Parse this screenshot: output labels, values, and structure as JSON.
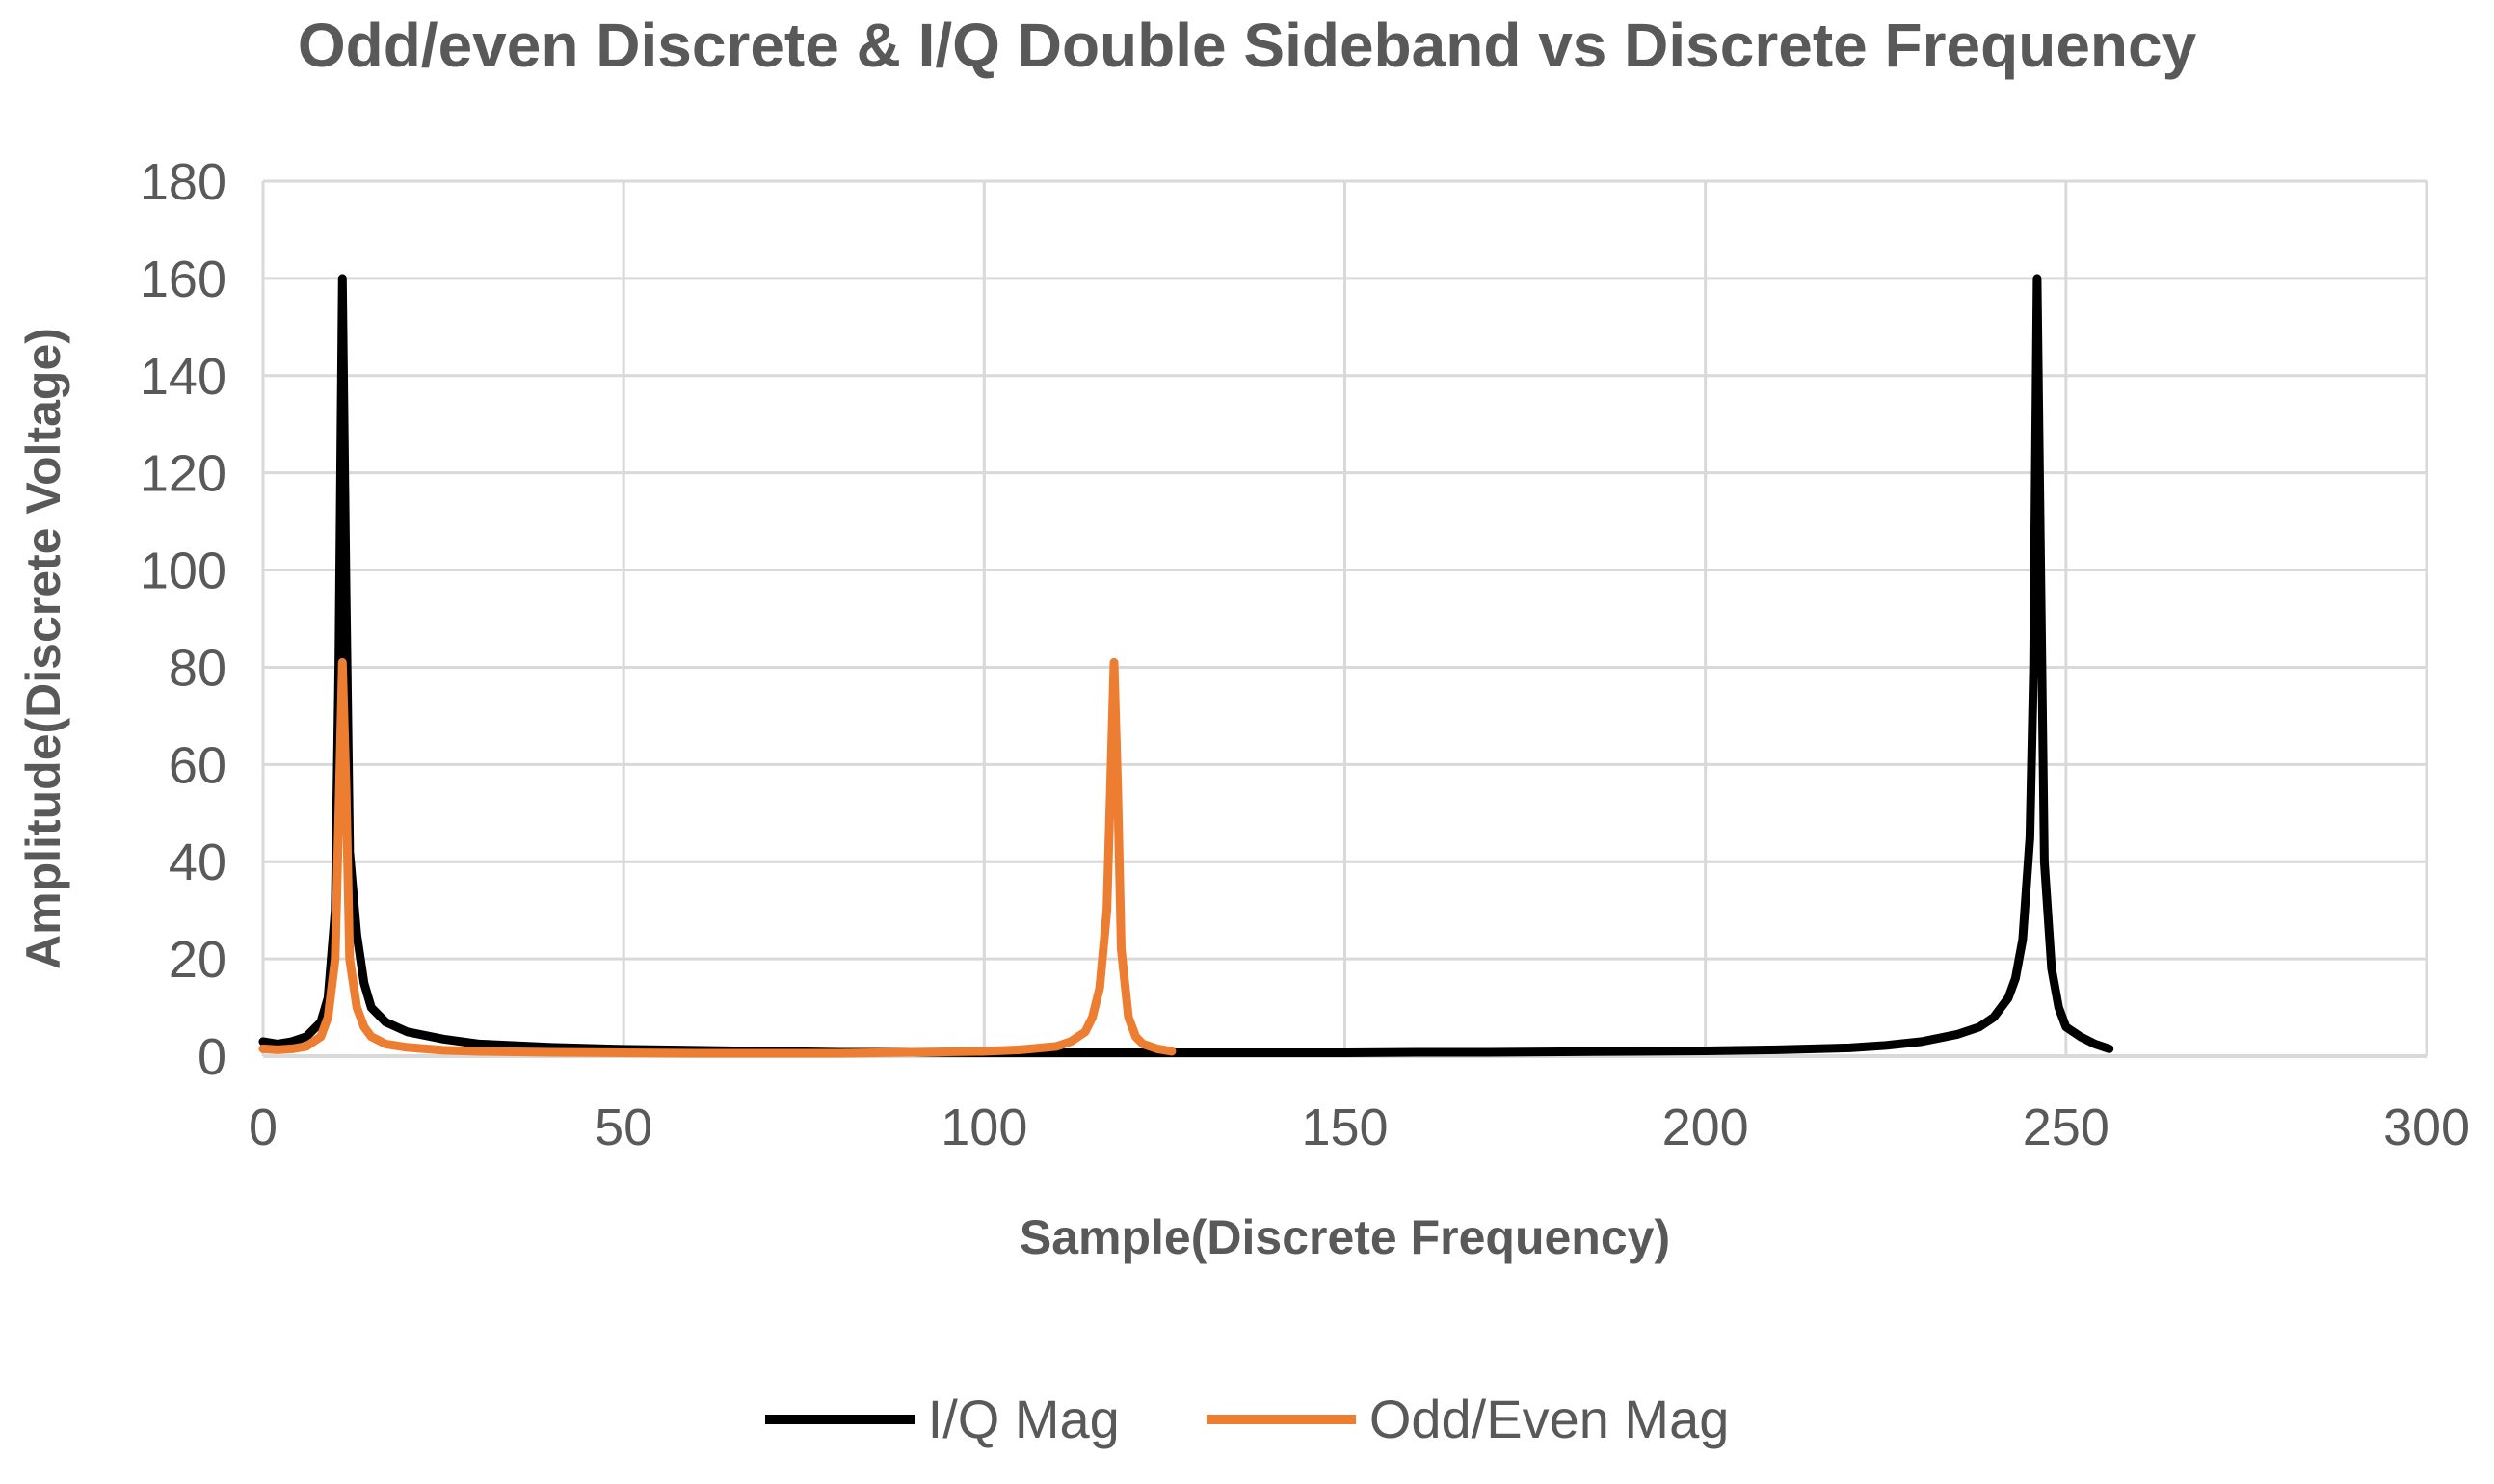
{
  "chart_data": {
    "type": "line",
    "title": "Odd/even Discrete & I/Q Double Sideband vs Discrete Frequency",
    "xlabel": "Sample(Discrete Frequency)",
    "ylabel": "Amplitude(Discrete Voltage)",
    "xlim": [
      0,
      300
    ],
    "ylim": [
      0,
      180
    ],
    "xticks": [
      0,
      50,
      100,
      150,
      200,
      250,
      300
    ],
    "yticks": [
      0,
      20,
      40,
      60,
      80,
      100,
      120,
      140,
      160,
      180
    ],
    "grid": true,
    "legend_position": "bottom",
    "series": [
      {
        "name": "I/Q Mag",
        "color": "#000000",
        "x": [
          0,
          2,
          4,
          6,
          8,
          9,
          10,
          10.5,
          11,
          11.5,
          12,
          13,
          14,
          15,
          17,
          20,
          25,
          30,
          40,
          50,
          60,
          70,
          80,
          90,
          100,
          110,
          120,
          130,
          140,
          150,
          160,
          170,
          180,
          190,
          200,
          210,
          220,
          225,
          230,
          235,
          238,
          240,
          242,
          243,
          244,
          245,
          245.5,
          246,
          246.5,
          247,
          248,
          249,
          250,
          252,
          254,
          256
        ],
        "y": [
          3,
          2.5,
          3,
          4,
          7,
          12,
          30,
          80,
          160,
          95,
          42,
          25,
          15,
          10,
          7,
          5,
          3.5,
          2.5,
          1.8,
          1.4,
          1.2,
          1,
          0.8,
          0.8,
          0.7,
          0.7,
          0.7,
          0.7,
          0.7,
          0.7,
          0.8,
          0.8,
          0.9,
          1,
          1.1,
          1.3,
          1.7,
          2.2,
          3,
          4.5,
          6,
          8,
          12,
          16,
          24,
          45,
          80,
          160,
          100,
          40,
          18,
          10,
          6,
          4,
          2.5,
          1.5
        ]
      },
      {
        "name": "Odd/Even Mag",
        "color": "#ED7D31",
        "x": [
          0,
          2,
          4,
          6,
          8,
          9,
          10,
          10.5,
          11,
          11.5,
          12,
          13,
          14,
          15,
          17,
          20,
          25,
          30,
          40,
          50,
          60,
          70,
          80,
          90,
          100,
          105,
          110,
          112,
          114,
          115,
          116,
          117,
          117.5,
          118,
          118.5,
          119,
          120,
          121,
          122,
          124,
          126
        ],
        "y": [
          1.5,
          1.3,
          1.5,
          2,
          4,
          8,
          20,
          50,
          81,
          55,
          20,
          10,
          6,
          4,
          2.5,
          1.8,
          1.2,
          1,
          0.8,
          0.7,
          0.6,
          0.6,
          0.6,
          0.8,
          1,
          1.3,
          2,
          3,
          5,
          8,
          14,
          30,
          55,
          81,
          55,
          22,
          8,
          4,
          2.5,
          1.5,
          1
        ]
      }
    ]
  }
}
